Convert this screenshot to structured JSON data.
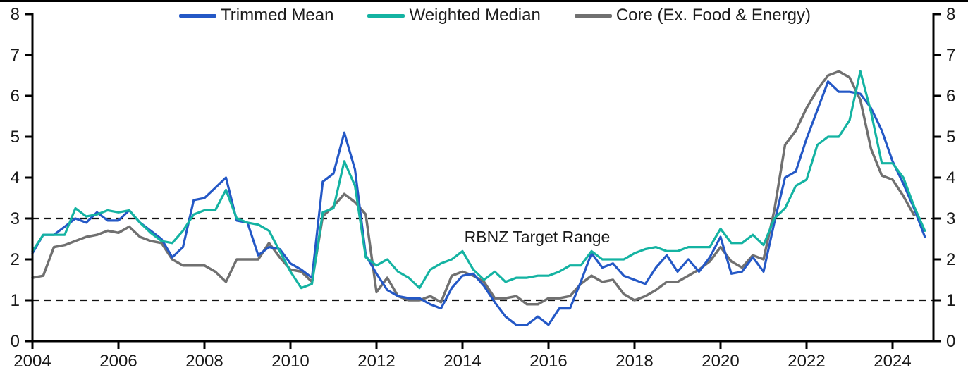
{
  "chart_data": {
    "type": "line",
    "title": "",
    "xlabel": "",
    "ylabel": "",
    "frequency": "quarterly",
    "x_start_year": 2004,
    "x_step": 0.25,
    "ylim": [
      0,
      8
    ],
    "yticks": [
      0,
      1,
      2,
      3,
      4,
      5,
      6,
      7,
      8
    ],
    "xticks": [
      2004,
      2006,
      2008,
      2010,
      2012,
      2014,
      2016,
      2018,
      2020,
      2022,
      2024
    ],
    "grid": "off",
    "legend_position": "top",
    "y_axis_sides": "both",
    "reference_lines": [
      {
        "y": 3,
        "style": "dashed",
        "color": "#111111"
      },
      {
        "y": 1,
        "style": "dashed",
        "color": "#111111"
      }
    ],
    "annotations": [
      {
        "text": "RBNZ Target Range",
        "x_year": 2015.7,
        "y_value": 2.55
      }
    ],
    "series": [
      {
        "name": "Trimmed Mean",
        "color": "#2458c6",
        "values": [
          2.15,
          2.6,
          2.6,
          2.8,
          3.0,
          2.9,
          3.15,
          2.95,
          2.95,
          3.2,
          2.9,
          2.7,
          2.5,
          2.05,
          2.3,
          3.45,
          3.5,
          3.75,
          4.0,
          2.95,
          2.9,
          2.1,
          2.3,
          2.25,
          1.9,
          1.75,
          1.55,
          3.9,
          4.1,
          5.1,
          4.2,
          2.1,
          1.65,
          1.25,
          1.1,
          1.05,
          1.05,
          0.9,
          0.8,
          1.3,
          1.6,
          1.65,
          1.35,
          0.95,
          0.6,
          0.4,
          0.4,
          0.6,
          0.4,
          0.8,
          0.8,
          1.45,
          2.15,
          1.8,
          1.9,
          1.6,
          1.5,
          1.4,
          1.8,
          2.1,
          1.7,
          2.0,
          1.7,
          2.05,
          2.55,
          1.65,
          1.7,
          2.05,
          1.7,
          2.9,
          4.0,
          4.15,
          4.95,
          5.65,
          6.35,
          6.1,
          6.1,
          6.05,
          5.7,
          5.15,
          4.4,
          3.85,
          3.25,
          2.55
        ]
      },
      {
        "name": "Weighted Median",
        "color": "#14b3a2",
        "values": [
          2.2,
          2.6,
          2.6,
          2.6,
          3.25,
          3.05,
          3.1,
          3.2,
          3.15,
          3.2,
          2.9,
          2.65,
          2.45,
          2.4,
          2.7,
          3.1,
          3.2,
          3.2,
          3.7,
          3.0,
          2.9,
          2.85,
          2.7,
          2.2,
          1.7,
          1.3,
          1.4,
          3.15,
          3.25,
          4.4,
          3.8,
          2.05,
          1.85,
          2.0,
          1.7,
          1.55,
          1.3,
          1.75,
          1.9,
          2.0,
          2.2,
          1.75,
          1.5,
          1.7,
          1.45,
          1.55,
          1.55,
          1.6,
          1.6,
          1.7,
          1.85,
          1.85,
          2.2,
          2.0,
          2.0,
          2.0,
          2.15,
          2.25,
          2.3,
          2.2,
          2.2,
          2.3,
          2.3,
          2.3,
          2.75,
          2.4,
          2.4,
          2.6,
          2.35,
          3.0,
          3.25,
          3.8,
          3.95,
          4.8,
          5.0,
          5.0,
          5.4,
          6.6,
          5.6,
          4.35,
          4.35,
          4.0,
          3.3,
          2.7
        ]
      },
      {
        "name": "Core (Ex. Food & Energy)",
        "color": "#707070",
        "values": [
          1.55,
          1.6,
          2.3,
          2.35,
          2.45,
          2.55,
          2.6,
          2.7,
          2.65,
          2.8,
          2.55,
          2.45,
          2.4,
          2.0,
          1.85,
          1.85,
          1.85,
          1.7,
          1.45,
          2.0,
          2.0,
          2.0,
          2.4,
          2.05,
          1.75,
          1.7,
          1.45,
          3.05,
          3.3,
          3.6,
          3.4,
          3.1,
          1.2,
          1.55,
          1.1,
          1.0,
          1.0,
          1.1,
          0.95,
          1.6,
          1.7,
          1.6,
          1.45,
          1.05,
          1.05,
          1.1,
          0.9,
          0.9,
          1.05,
          1.05,
          1.1,
          1.4,
          1.6,
          1.45,
          1.5,
          1.15,
          1.0,
          1.1,
          1.25,
          1.45,
          1.45,
          1.6,
          1.75,
          1.95,
          2.3,
          1.95,
          1.8,
          2.1,
          2.0,
          3.2,
          4.8,
          5.15,
          5.7,
          6.15,
          6.5,
          6.6,
          6.45,
          5.9,
          4.7,
          4.05,
          3.95,
          3.55,
          3.08,
          null
        ]
      }
    ]
  },
  "colors": {
    "axis": "#000000",
    "tick_label": "#1a1a1a",
    "background": "#ffffff"
  }
}
